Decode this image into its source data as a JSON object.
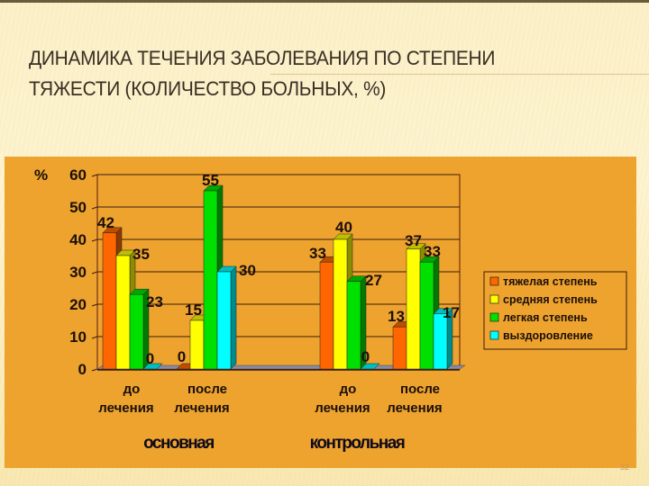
{
  "slide": {
    "title_line1": "ДИНАМИКА ТЕЧЕНИЯ ЗАБОЛЕВАНИЯ ПО СТЕПЕНИ",
    "title_line2": "ТЯЖЕСТИ (КОЛИЧЕСТВО БОЛЬНЫХ, %)",
    "slide_number": "32"
  },
  "colors": {
    "background": "#fbf0c8",
    "chart_bg": "#eea32e",
    "severe": "#ff6600",
    "moderate": "#ffff00",
    "mild": "#00e000",
    "recovery": "#00ffff"
  },
  "chart_data": {
    "type": "bar",
    "title": "ДИНАМИКА ТЕЧЕНИЯ ЗАБОЛЕВАНИЯ ПО СТЕПЕНИ ТЯЖЕСТИ (КОЛИЧЕСТВО БОЛЬНЫХ, %)",
    "ylabel": "%",
    "xlabel": "",
    "ylim": [
      0,
      60
    ],
    "yticks": [
      0,
      10,
      20,
      30,
      40,
      50,
      60
    ],
    "grid": true,
    "legend_position": "right",
    "categories": [
      "до лечения (основная)",
      "после лечения (основная)",
      "до лечения (контрольная)",
      "после лечения (контрольная)"
    ],
    "category_labels": [
      {
        "line1": "до",
        "line2": "лечения"
      },
      {
        "line1": "после",
        "line2": "лечения"
      },
      {
        "line1": "до",
        "line2": "лечения"
      },
      {
        "line1": "после",
        "line2": "лечения"
      }
    ],
    "groups": [
      "основная",
      "контрольная"
    ],
    "series": [
      {
        "name": "тяжелая степень",
        "color": "#ff6600",
        "values": [
          42,
          0,
          33,
          13
        ]
      },
      {
        "name": "средняя степень",
        "color": "#ffff00",
        "values": [
          35,
          15,
          40,
          37
        ]
      },
      {
        "name": "легкая степень",
        "color": "#00e000",
        "values": [
          23,
          55,
          27,
          33
        ]
      },
      {
        "name": "выздоровление",
        "color": "#00ffff",
        "values": [
          0,
          30,
          0,
          17
        ]
      }
    ],
    "legend": [
      "тяжелая степень",
      "средняя степень",
      "легкая степень",
      "выздоровление"
    ]
  }
}
